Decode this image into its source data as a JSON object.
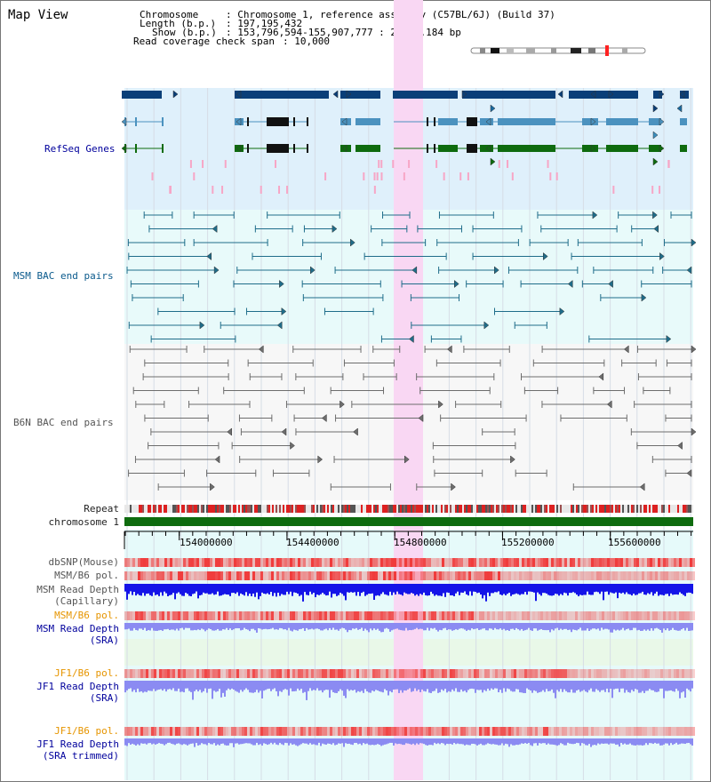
{
  "title": "Map View",
  "info": {
    "chromosome_key": "Chromosome",
    "chromosome_val": ": Chromosome 1, reference assembly (C57BL/6J) (Build 37)",
    "length_key": "Length (b.p.)",
    "length_val": ": 197,195,432",
    "show_key": "Show (b.p.)",
    "show_val": ": 153,796,594-155,907,777 : 2,111,184 bp",
    "span_key": "Read coverage check span",
    "span_val": ": 10,000"
  },
  "tracks": {
    "refseq": "RefSeq Genes",
    "msm_bac": "MSM BAC end pairs",
    "b6n_bac": "B6N BAC end pairs",
    "repeat": "Repeat",
    "chromosome": "chromosome 1",
    "dbsnp": "dbSNP(Mouse)",
    "msm_b6_pol_1": "MSM/B6 pol.",
    "msm_read_depth_cap_1": "MSM Read Depth",
    "msm_read_depth_cap_2": "(Capillary)",
    "msm_b6_pol_2": "MSM/B6 pol.",
    "msm_read_depth_sra_1": "MSM Read Depth",
    "msm_read_depth_sra_2": "(SRA)",
    "jf1_b6_pol_1": "JF1/B6 pol.",
    "jf1_read_depth_1": "JF1 Read Depth",
    "jf1_read_depth_2": "(SRA)",
    "jf1_b6_pol_2": "JF1/B6 pol.",
    "jf1_trim_1": "JF1 Read Depth",
    "jf1_trim_2": "(SRA trimmed)"
  },
  "axis": {
    "ticks": [
      "154000000",
      "154400000",
      "154800000",
      "155200000",
      "155600000"
    ],
    "tick_values": [
      154000000,
      154400000,
      154800000,
      155200000,
      155600000
    ],
    "minor_step": 50000,
    "range": [
      153796594,
      155907777
    ]
  },
  "highlight": {
    "start": 154796000,
    "end": 154906000
  },
  "colors": {
    "refseq_bg": "#dff0fb",
    "msm_bg": "#e8fafa",
    "b6n_bg": "#f7f7f7",
    "highlight": "#f9d7f3",
    "gene_dark": "#0a3f78",
    "gene_mid": "#4b92bf",
    "gene_green": "#0e6b0e",
    "msm_line": "#1f6d8a",
    "b6n_line": "#6d6d6d",
    "chrom_bar": "#0e6b0e",
    "snp_red": "#f25c5c",
    "depth_blue": "#1414e8",
    "sra_blue": "#8b8bf2"
  }
}
